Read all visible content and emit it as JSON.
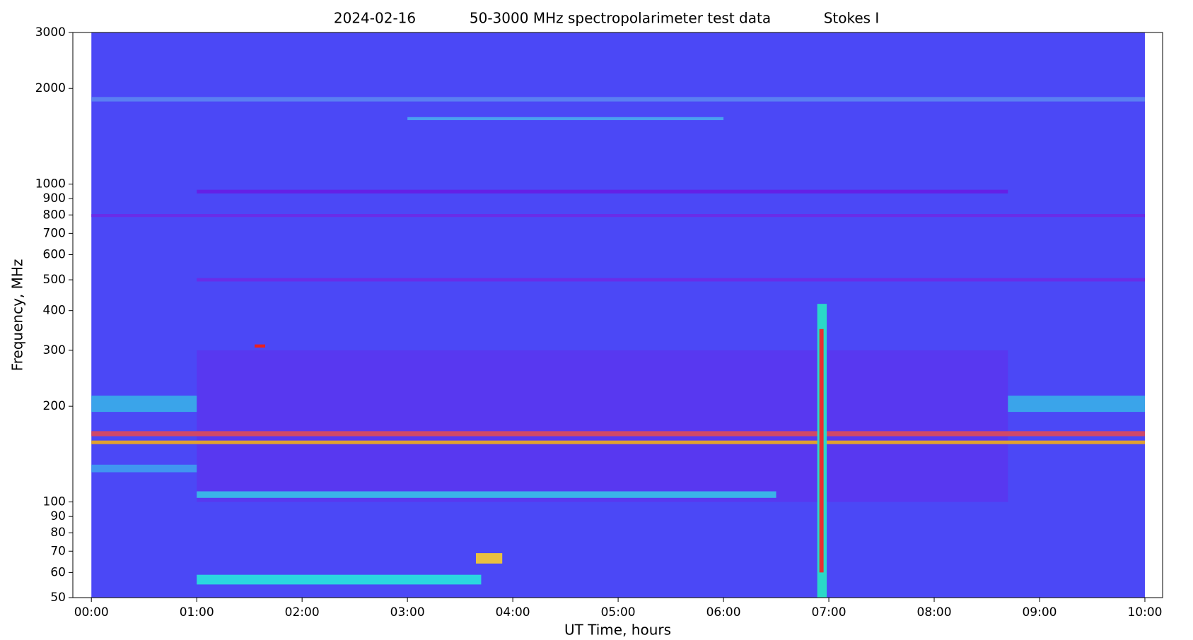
{
  "chart_data": {
    "type": "spectrogram",
    "title": [
      "2024-02-16",
      "50-3000 MHz spectropolarimeter test data",
      "Stokes I"
    ],
    "x_label": "UT Time, hours",
    "y_label": "Frequency, MHz",
    "log_y": true,
    "xlim": [
      -0.176,
      10.168
    ],
    "ylim": [
      50,
      3000
    ],
    "xticks": [
      {
        "value": 0,
        "label": "00:00"
      },
      {
        "value": 1,
        "label": "01:00"
      },
      {
        "value": 2,
        "label": "02:00"
      },
      {
        "value": 3,
        "label": "03:00"
      },
      {
        "value": 4,
        "label": "04:00"
      },
      {
        "value": 5,
        "label": "05:00"
      },
      {
        "value": 6,
        "label": "06:00"
      },
      {
        "value": 7,
        "label": "07:00"
      },
      {
        "value": 8,
        "label": "08:00"
      },
      {
        "value": 9,
        "label": "09:00"
      },
      {
        "value": 10,
        "label": "10:00"
      }
    ],
    "yticks": [
      50,
      60,
      70,
      80,
      90,
      100,
      200,
      300,
      400,
      500,
      600,
      700,
      800,
      900,
      1000,
      2000,
      3000
    ],
    "background": {
      "t": [
        0,
        10
      ],
      "color": "#4b48f6"
    },
    "features": [
      {
        "t": [
          1.0,
          8.7
        ],
        "f": [
          100,
          300
        ],
        "color": "#5838f0"
      },
      {
        "t": [
          0,
          10
        ],
        "f": [
          1820,
          1880
        ],
        "color": "#5a80f2"
      },
      {
        "t": [
          3.0,
          6.0
        ],
        "f": [
          1590,
          1625
        ],
        "color": "#4aa0f0"
      },
      {
        "t": [
          1.0,
          8.7
        ],
        "f": [
          935,
          960
        ],
        "color": "#6420e6"
      },
      {
        "t": [
          0,
          10
        ],
        "f": [
          788,
          805
        ],
        "color": "#6a2ce8"
      },
      {
        "t": [
          1.0,
          10
        ],
        "f": [
          494,
          506
        ],
        "color": "#6a2ce8"
      },
      {
        "t": [
          0,
          10
        ],
        "f": [
          161,
          167
        ],
        "color": "#d04868"
      },
      {
        "t": [
          0,
          10
        ],
        "f": [
          152,
          156
        ],
        "color": "#e0a030"
      },
      {
        "t": [
          0,
          1.0
        ],
        "f": [
          192,
          216
        ],
        "color": "#3aa4ea"
      },
      {
        "t": [
          8.7,
          10
        ],
        "f": [
          192,
          216
        ],
        "color": "#3aa4ea"
      },
      {
        "t": [
          0,
          1.0
        ],
        "f": [
          124,
          131
        ],
        "color": "#4096f0"
      },
      {
        "t": [
          1.0,
          6.5
        ],
        "f": [
          103,
          108
        ],
        "color": "#3ab4e8"
      },
      {
        "t": [
          1.0,
          3.7
        ],
        "f": [
          55,
          59
        ],
        "color": "#2ad6e0"
      },
      {
        "t": [
          3.65,
          3.9
        ],
        "f": [
          64,
          69
        ],
        "color": "#e8c040"
      },
      {
        "t": [
          1.55,
          1.65
        ],
        "f": [
          306,
          313
        ],
        "color": "#e82020"
      },
      {
        "t": [
          6.89,
          6.98
        ],
        "f": [
          50,
          420
        ],
        "color": "#2ad8c8"
      },
      {
        "t": [
          6.91,
          6.95
        ],
        "f": [
          60,
          350
        ],
        "color": "#e83030"
      }
    ]
  }
}
